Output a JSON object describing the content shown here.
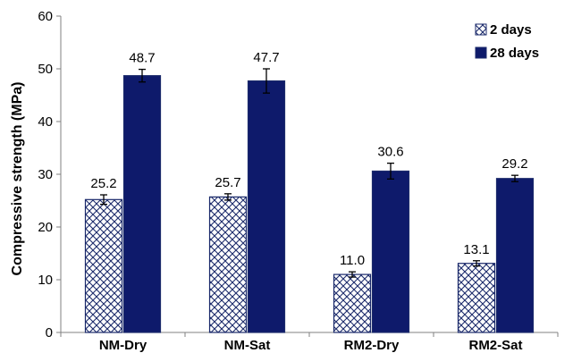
{
  "chart_data": {
    "type": "bar",
    "categories": [
      "NM-Dry",
      "NM-Sat",
      "RM2-Dry",
      "RM2-Sat"
    ],
    "series": [
      {
        "name": "2 days",
        "values": [
          25.2,
          25.7,
          11.0,
          13.1
        ],
        "value_labels": [
          "25.2",
          "25.7",
          "11.0",
          "13.1"
        ],
        "errors": [
          0.9,
          0.6,
          0.5,
          0.5
        ],
        "color": "#1b2a6b",
        "pattern": "crosshatch"
      },
      {
        "name": "28 days",
        "values": [
          48.7,
          47.7,
          30.6,
          29.2
        ],
        "value_labels": [
          "48.7",
          "47.7",
          "30.6",
          "29.2"
        ],
        "errors": [
          1.2,
          2.3,
          1.5,
          0.6
        ],
        "color": "#0e1a6b",
        "pattern": "solid"
      }
    ],
    "xlabel": "",
    "ylabel": "Compressive strength (MPa)",
    "ylim": [
      0,
      60
    ],
    "yticks": [
      "0",
      "10",
      "20",
      "30",
      "40",
      "50",
      "60"
    ],
    "grid": false,
    "legend_position": "top-right"
  }
}
